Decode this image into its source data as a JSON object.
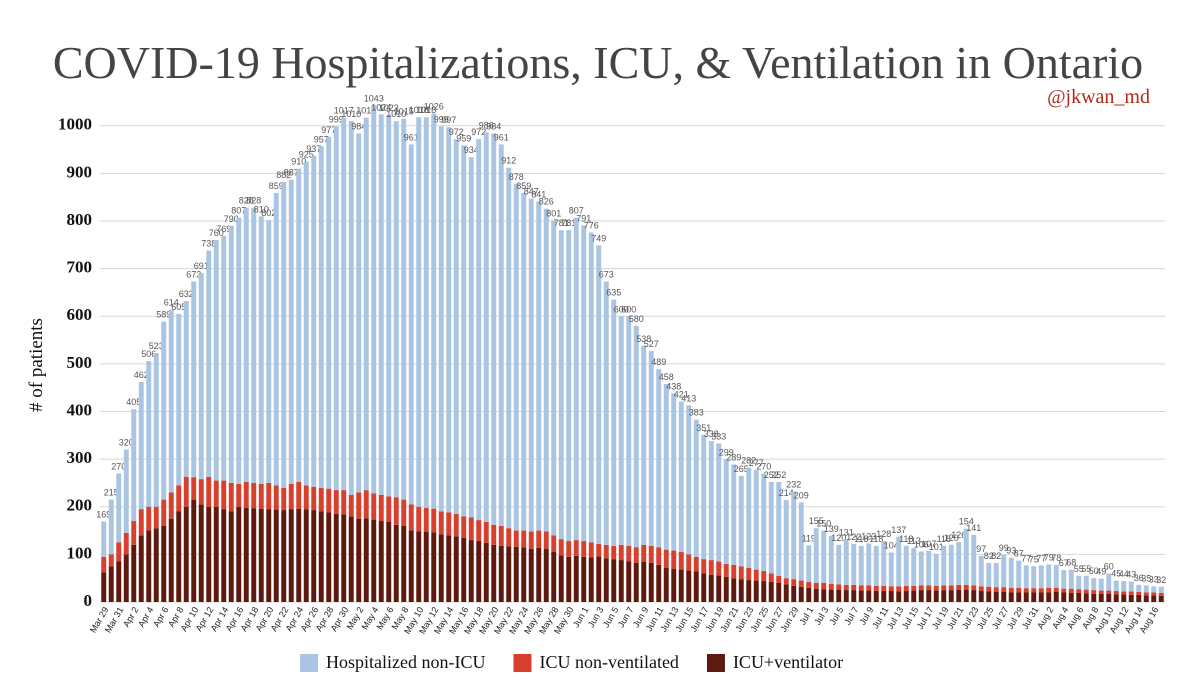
{
  "chart_data": {
    "type": "stacked_bar",
    "title": "COVID-19 Hospitalizations, ICU, & Ventilation in Ontario",
    "subtitle": "@jkwan_md",
    "y_label": "# of patients",
    "categories": [
      "Mar 29",
      null,
      "Mar 31",
      null,
      "Apr 2",
      null,
      "Apr 4",
      null,
      "Apr 6",
      null,
      "Apr 8",
      null,
      "Apr 10",
      null,
      "Apr 12",
      null,
      "Apr 14",
      null,
      "Apr 16",
      null,
      "Apr 18",
      null,
      "Apr 20",
      null,
      "Apr 22",
      null,
      "Apr 24",
      null,
      "Apr 26",
      null,
      "Apr 28",
      null,
      "Apr 30",
      null,
      "May 2",
      null,
      "May 4",
      null,
      "May 6",
      null,
      "May 8",
      null,
      "May 10",
      null,
      "May 12",
      null,
      "May 14",
      null,
      "May 16",
      null,
      "May 18",
      null,
      "May 20",
      null,
      "May 22",
      null,
      "May 24",
      null,
      "May 26",
      null,
      "May 28",
      null,
      "May 30",
      null,
      "Jun 1",
      null,
      "Jun 3",
      null,
      "Jun 5",
      null,
      "Jun 7",
      null,
      "Jun 9",
      null,
      "Jun 11",
      null,
      "Jun 13",
      null,
      "Jun 15",
      null,
      "Jun 17",
      null,
      "Jun 19",
      null,
      "Jun 21",
      null,
      "Jun 23",
      null,
      "Jun 25",
      null,
      "Jun 27",
      null,
      "Jun 29",
      null,
      "Jul 1",
      null,
      "Jul 3",
      null,
      "Jul 5",
      null,
      "Jul 7",
      null,
      "Jul 9",
      null,
      "Jul 11",
      null,
      "Jul 13",
      null,
      "Jul 15",
      null,
      "Jul 17",
      null,
      "Jul 19",
      null,
      "Jul 21",
      null,
      "Jul 23",
      null,
      "Jul 25",
      null,
      "Jul 27",
      null,
      "Jul 29",
      null,
      "Jul 31",
      null,
      "Aug 2",
      null,
      "Aug 4",
      null,
      "Aug 6",
      null,
      "Aug 8",
      null,
      "Aug 10",
      null,
      "Aug 12",
      null,
      "Aug 14",
      null,
      "Aug 16",
      null
    ],
    "series": [
      {
        "name": "Hospitalized non-ICU",
        "color": "#a9c5e3",
        "values": [
          74,
          115,
          145,
          175,
          235,
          267,
          306,
          323,
          374,
          384,
          360,
          369,
          411,
          433,
          475,
          505,
          514,
          540,
          559,
          576,
          578,
          562,
          552,
          614,
          642,
          639,
          658,
          680,
          695,
          717,
          739,
          764,
          782,
          785,
          754,
          782,
          815,
          799,
          801,
          790,
          800,
          756,
          818,
          820,
          830,
          809,
          809,
          787,
          779,
          756,
          800,
          818,
          822,
          801,
          757,
          728,
          709,
          699,
          691,
          678,
          661,
          649,
          653,
          677,
          663,
          651,
          627,
          553,
          517,
          480,
          482,
          465,
          418,
          409,
          374,
          348,
          330,
          316,
          313,
          288,
          261,
          250,
          248,
          219,
          211,
          190,
          210,
          209,
          205,
          192,
          197,
          164,
          184,
          164,
          77,
          115,
          110,
          101,
          83,
          95,
          86,
          83,
          88,
          84,
          94,
          71,
          104,
          84,
          79,
          71,
          72,
          67,
          83,
          85,
          90,
          118,
          106,
          64,
          50,
          51,
          68,
          63,
          57,
          48,
          46,
          48,
          49,
          48,
          39,
          40,
          28,
          29,
          25,
          25,
          36,
          22,
          22,
          21,
          15,
          15,
          13,
          13
        ]
      },
      {
        "name": "ICU non-ventilated",
        "color": "#d8402e",
        "values": [
          33,
          25,
          40,
          45,
          50,
          55,
          50,
          45,
          55,
          55,
          55,
          63,
          47,
          53,
          63,
          55,
          60,
          60,
          48,
          54,
          53,
          52,
          55,
          51,
          47,
          53,
          56,
          50,
          49,
          50,
          50,
          50,
          51,
          45,
          55,
          59,
          55,
          55,
          54,
          58,
          55,
          55,
          52,
          51,
          50,
          48,
          48,
          47,
          45,
          48,
          44,
          44,
          42,
          42,
          38,
          34,
          35,
          36,
          36,
          36,
          35,
          34,
          33,
          33,
          33,
          31,
          26,
          28,
          28,
          32,
          33,
          33,
          36,
          36,
          37,
          38,
          38,
          37,
          34,
          31,
          30,
          31,
          29,
          27,
          28,
          27,
          26,
          23,
          21,
          18,
          15,
          13,
          14,
          13,
          12,
          12,
          13,
          12,
          11,
          11,
          11,
          11,
          11,
          11,
          11,
          10,
          11,
          11,
          10,
          10,
          10,
          10,
          10,
          10,
          10,
          10,
          10,
          10,
          10,
          10,
          10,
          10,
          10,
          9,
          9,
          9,
          10,
          9,
          8,
          9,
          8,
          8,
          8,
          7,
          7,
          7,
          6,
          7,
          6,
          6,
          6,
          6
        ]
      },
      {
        "name": "ICU+ventilator",
        "color": "#5e1a0f",
        "values": [
          62,
          75,
          85,
          100,
          120,
          140,
          150,
          155,
          160,
          175,
          190,
          200,
          215,
          205,
          200,
          200,
          195,
          190,
          200,
          198,
          197,
          196,
          195,
          194,
          193,
          195,
          196,
          195,
          193,
          190,
          188,
          185,
          184,
          180,
          175,
          176,
          173,
          170,
          168,
          162,
          160,
          150,
          148,
          147,
          146,
          142,
          140,
          138,
          135,
          130,
          128,
          124,
          120,
          118,
          117,
          116,
          115,
          112,
          114,
          112,
          105,
          98,
          95,
          97,
          95,
          94,
          96,
          92,
          90,
          88,
          85,
          82,
          84,
          82,
          78,
          72,
          70,
          68,
          66,
          64,
          60,
          57,
          56,
          53,
          50,
          48,
          46,
          45,
          44,
          42,
          40,
          37,
          34,
          32,
          30,
          28,
          27,
          26,
          26,
          25,
          25,
          24,
          24,
          23,
          23,
          23,
          22,
          23,
          24,
          25,
          25,
          24,
          25,
          25,
          26,
          26,
          25,
          23,
          22,
          21,
          21,
          20,
          20,
          20,
          20,
          20,
          20,
          21,
          20,
          19,
          19,
          18,
          17,
          17,
          17,
          16,
          16,
          15,
          15,
          14,
          14,
          13
        ]
      }
    ],
    "totals": [
      169,
      215,
      270,
      320,
      405,
      462,
      506,
      523,
      589,
      614,
      605,
      632,
      673,
      691,
      738,
      760,
      769,
      790,
      807,
      828,
      828,
      810,
      802,
      859,
      882,
      887,
      910,
      925,
      937,
      957,
      977,
      999,
      1017,
      1010,
      984,
      1017,
      1043,
      1024,
      1023,
      1010,
      1015,
      961,
      1018,
      1018,
      1026,
      999,
      997,
      972,
      959,
      934,
      972,
      986,
      984,
      961,
      912,
      878,
      859,
      847,
      841,
      826,
      801,
      781,
      781,
      807,
      791,
      776,
      749,
      673,
      635,
      600,
      600,
      580,
      538,
      527,
      489,
      458,
      438,
      421,
      413,
      383,
      351,
      338,
      333,
      299,
      289,
      265,
      282,
      277,
      270,
      252,
      252,
      214,
      232,
      209,
      119,
      155,
      150,
      139,
      120,
      131,
      122,
      118,
      123,
      118,
      128,
      104,
      137,
      118,
      113,
      106,
      107,
      101,
      118,
      120,
      126,
      154,
      141,
      97,
      82,
      82,
      99,
      93,
      87,
      77,
      75,
      77,
      79,
      78,
      67,
      68,
      55,
      55,
      50,
      49,
      60,
      45,
      44,
      43,
      36,
      35,
      33,
      32
    ],
    "ylim": [
      0,
      1050
    ],
    "yticks": [
      0,
      100,
      200,
      300,
      400,
      500,
      600,
      700,
      800,
      900,
      1000
    ],
    "grid": true
  }
}
